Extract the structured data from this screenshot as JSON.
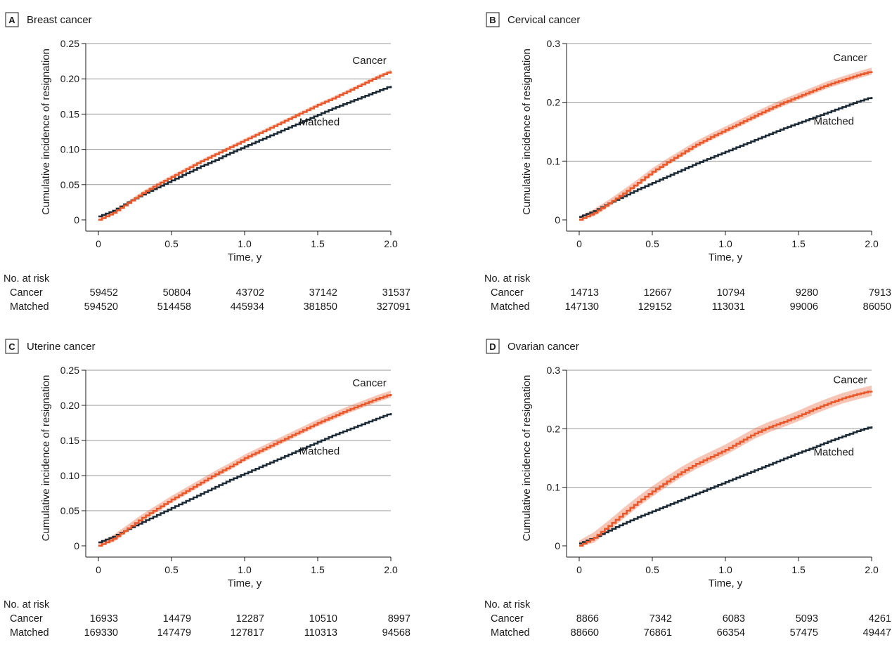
{
  "chart_data": [
    {
      "type": "line",
      "panel_letter": "A",
      "title": "Breast cancer",
      "xlabel": "Time, y",
      "ylabel": "Cumulative incidence of resignation",
      "xlim": [
        0,
        2.0
      ],
      "ylim": [
        0,
        0.25
      ],
      "x_ticks": [
        0,
        0.5,
        1.0,
        1.5,
        2.0
      ],
      "x_tick_labels": [
        "0",
        "0.5",
        "1.0",
        "1.5",
        "2.0"
      ],
      "y_ticks": [
        0,
        0.05,
        0.1,
        0.15,
        0.2,
        0.25
      ],
      "y_tick_labels": [
        "0",
        "0.05",
        "0.10",
        "0.15",
        "0.20",
        "0.25"
      ],
      "grid": true,
      "series": [
        {
          "name": "Cancer",
          "color": "#e8582a",
          "band": 0.002,
          "x": [
            0,
            0.1,
            0.2,
            0.3,
            0.4,
            0.5,
            0.6,
            0.7,
            0.8,
            0.9,
            1.0,
            1.1,
            1.2,
            1.3,
            1.4,
            1.5,
            1.6,
            1.7,
            1.8,
            1.9,
            2.0
          ],
          "y": [
            0,
            0.01,
            0.024,
            0.038,
            0.05,
            0.061,
            0.072,
            0.083,
            0.093,
            0.103,
            0.113,
            0.123,
            0.133,
            0.143,
            0.153,
            0.163,
            0.172,
            0.182,
            0.192,
            0.202,
            0.211
          ]
        },
        {
          "name": "Matched",
          "color": "#1b2a35",
          "band": 0,
          "x": [
            0,
            0.1,
            0.2,
            0.3,
            0.4,
            0.5,
            0.6,
            0.7,
            0.8,
            0.9,
            1.0,
            1.1,
            1.2,
            1.3,
            1.4,
            1.5,
            1.6,
            1.7,
            1.8,
            1.9,
            2.0
          ],
          "y": [
            0.005,
            0.013,
            0.025,
            0.036,
            0.046,
            0.056,
            0.066,
            0.076,
            0.085,
            0.095,
            0.104,
            0.113,
            0.122,
            0.131,
            0.14,
            0.149,
            0.158,
            0.166,
            0.174,
            0.182,
            0.19
          ]
        }
      ],
      "annotations": [
        {
          "text": "Cancer",
          "x": 1.97,
          "y": 0.226
        },
        {
          "text": "Matched",
          "x": 1.65,
          "y": 0.139
        }
      ],
      "risk_table": {
        "heading": "No. at risk",
        "rows": [
          {
            "label": "Cancer",
            "values": [
              "59452",
              "50804",
              "43702",
              "37142",
              "31537"
            ]
          },
          {
            "label": "Matched",
            "values": [
              "594520",
              "514458",
              "445934",
              "381850",
              "327091"
            ]
          }
        ]
      }
    },
    {
      "type": "line",
      "panel_letter": "B",
      "title": "Cervical cancer",
      "xlabel": "Time, y",
      "ylabel": "Cumulative incidence of resignation",
      "xlim": [
        0,
        2.0
      ],
      "ylim": [
        0,
        0.3
      ],
      "x_ticks": [
        0,
        0.5,
        1.0,
        1.5,
        2.0
      ],
      "x_tick_labels": [
        "0",
        "0.5",
        "1.0",
        "1.5",
        "2.0"
      ],
      "y_ticks": [
        0,
        0.1,
        0.2,
        0.3
      ],
      "y_tick_labels": [
        "0",
        "0.1",
        "0.2",
        "0.3"
      ],
      "grid": true,
      "series": [
        {
          "name": "Cancer",
          "color": "#e8582a",
          "band": 0.006,
          "x": [
            0,
            0.1,
            0.2,
            0.3,
            0.4,
            0.5,
            0.6,
            0.7,
            0.8,
            0.9,
            1.0,
            1.1,
            1.2,
            1.3,
            1.4,
            1.5,
            1.6,
            1.7,
            1.8,
            1.9,
            2.0
          ],
          "y": [
            0,
            0.012,
            0.028,
            0.045,
            0.063,
            0.082,
            0.098,
            0.113,
            0.128,
            0.141,
            0.153,
            0.165,
            0.177,
            0.189,
            0.2,
            0.21,
            0.22,
            0.23,
            0.238,
            0.246,
            0.253
          ]
        },
        {
          "name": "Matched",
          "color": "#1b2a35",
          "band": 0,
          "x": [
            0,
            0.1,
            0.2,
            0.3,
            0.4,
            0.5,
            0.6,
            0.7,
            0.8,
            0.9,
            1.0,
            1.1,
            1.2,
            1.3,
            1.4,
            1.5,
            1.6,
            1.7,
            1.8,
            1.9,
            2.0
          ],
          "y": [
            0.005,
            0.015,
            0.028,
            0.04,
            0.052,
            0.063,
            0.074,
            0.085,
            0.096,
            0.106,
            0.116,
            0.126,
            0.136,
            0.146,
            0.156,
            0.165,
            0.174,
            0.183,
            0.192,
            0.201,
            0.209
          ]
        }
      ],
      "annotations": [
        {
          "text": "Cancer",
          "x": 1.97,
          "y": 0.276
        },
        {
          "text": "Matched",
          "x": 1.88,
          "y": 0.168
        }
      ],
      "risk_table": {
        "heading": "No. at risk",
        "rows": [
          {
            "label": "Cancer",
            "values": [
              "14713",
              "12667",
              "10794",
              "9280",
              "7913"
            ]
          },
          {
            "label": "Matched",
            "values": [
              "147130",
              "129152",
              "113031",
              "99006",
              "86050"
            ]
          }
        ]
      }
    },
    {
      "type": "line",
      "panel_letter": "C",
      "title": "Uterine cancer",
      "xlabel": "Time, y",
      "ylabel": "Cumulative incidence of resignation",
      "xlim": [
        0,
        2.0
      ],
      "ylim": [
        0,
        0.25
      ],
      "x_ticks": [
        0,
        0.5,
        1.0,
        1.5,
        2.0
      ],
      "x_tick_labels": [
        "0",
        "0.5",
        "1.0",
        "1.5",
        "2.0"
      ],
      "y_ticks": [
        0,
        0.05,
        0.1,
        0.15,
        0.2,
        0.25
      ],
      "y_tick_labels": [
        "0",
        "0.05",
        "0.10",
        "0.15",
        "0.20",
        "0.25"
      ],
      "grid": true,
      "series": [
        {
          "name": "Cancer",
          "color": "#e8582a",
          "band": 0.005,
          "x": [
            0,
            0.1,
            0.2,
            0.3,
            0.4,
            0.5,
            0.6,
            0.7,
            0.8,
            0.9,
            1.0,
            1.1,
            1.2,
            1.3,
            1.4,
            1.5,
            1.6,
            1.7,
            1.8,
            1.9,
            2.0
          ],
          "y": [
            0,
            0.01,
            0.025,
            0.04,
            0.053,
            0.066,
            0.078,
            0.09,
            0.102,
            0.113,
            0.125,
            0.135,
            0.145,
            0.155,
            0.165,
            0.175,
            0.184,
            0.193,
            0.201,
            0.209,
            0.216
          ]
        },
        {
          "name": "Matched",
          "color": "#1b2a35",
          "band": 0,
          "x": [
            0,
            0.1,
            0.2,
            0.3,
            0.4,
            0.5,
            0.6,
            0.7,
            0.8,
            0.9,
            1.0,
            1.1,
            1.2,
            1.3,
            1.4,
            1.5,
            1.6,
            1.7,
            1.8,
            1.9,
            2.0
          ],
          "y": [
            0.005,
            0.013,
            0.024,
            0.034,
            0.044,
            0.054,
            0.064,
            0.074,
            0.084,
            0.094,
            0.103,
            0.112,
            0.121,
            0.13,
            0.139,
            0.148,
            0.157,
            0.165,
            0.173,
            0.181,
            0.189
          ]
        }
      ],
      "annotations": [
        {
          "text": "Cancer",
          "x": 1.97,
          "y": 0.232
        },
        {
          "text": "Matched",
          "x": 1.65,
          "y": 0.135
        }
      ],
      "risk_table": {
        "heading": "No. at risk",
        "rows": [
          {
            "label": "Cancer",
            "values": [
              "16933",
              "14479",
              "12287",
              "10510",
              "8997"
            ]
          },
          {
            "label": "Matched",
            "values": [
              "169330",
              "147479",
              "127817",
              "110313",
              "94568"
            ]
          }
        ]
      }
    },
    {
      "type": "line",
      "panel_letter": "D",
      "title": "Ovarian cancer",
      "xlabel": "Time, y",
      "ylabel": "Cumulative incidence of resignation",
      "xlim": [
        0,
        2.0
      ],
      "ylim": [
        0,
        0.3
      ],
      "x_ticks": [
        0,
        0.5,
        1.0,
        1.5,
        2.0
      ],
      "x_tick_labels": [
        "0",
        "0.5",
        "1.0",
        "1.5",
        "2.0"
      ],
      "y_ticks": [
        0,
        0.1,
        0.2,
        0.3
      ],
      "y_tick_labels": [
        "0",
        "0.1",
        "0.2",
        "0.3"
      ],
      "grid": true,
      "series": [
        {
          "name": "Cancer",
          "color": "#e8582a",
          "band": 0.009,
          "x": [
            0,
            0.1,
            0.2,
            0.3,
            0.4,
            0.5,
            0.6,
            0.7,
            0.8,
            0.9,
            1.0,
            1.1,
            1.2,
            1.3,
            1.4,
            1.5,
            1.6,
            1.7,
            1.8,
            1.9,
            2.0
          ],
          "y": [
            0,
            0.014,
            0.034,
            0.055,
            0.075,
            0.093,
            0.11,
            0.126,
            0.14,
            0.152,
            0.164,
            0.178,
            0.192,
            0.203,
            0.212,
            0.222,
            0.233,
            0.243,
            0.252,
            0.259,
            0.265
          ]
        },
        {
          "name": "Matched",
          "color": "#1b2a35",
          "band": 0,
          "x": [
            0,
            0.1,
            0.2,
            0.3,
            0.4,
            0.5,
            0.6,
            0.7,
            0.8,
            0.9,
            1.0,
            1.1,
            1.2,
            1.3,
            1.4,
            1.5,
            1.6,
            1.7,
            1.8,
            1.9,
            2.0
          ],
          "y": [
            0.004,
            0.014,
            0.026,
            0.038,
            0.049,
            0.059,
            0.069,
            0.079,
            0.089,
            0.099,
            0.109,
            0.119,
            0.129,
            0.139,
            0.149,
            0.159,
            0.168,
            0.178,
            0.187,
            0.196,
            0.204
          ]
        }
      ],
      "annotations": [
        {
          "text": "Cancer",
          "x": 1.97,
          "y": 0.284
        },
        {
          "text": "Matched",
          "x": 1.88,
          "y": 0.16
        }
      ],
      "risk_table": {
        "heading": "No. at risk",
        "rows": [
          {
            "label": "Cancer",
            "values": [
              "8866",
              "7342",
              "6083",
              "5093",
              "4261"
            ]
          },
          {
            "label": "Matched",
            "values": [
              "88660",
              "76861",
              "66354",
              "57475",
              "49447"
            ]
          }
        ]
      }
    }
  ]
}
